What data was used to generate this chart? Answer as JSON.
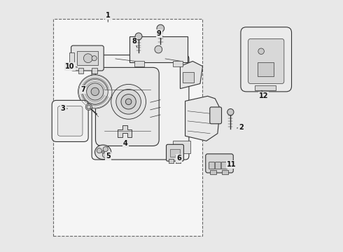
{
  "background_color": "#e8e8e8",
  "line_color": "#333333",
  "fig_width": 4.9,
  "fig_height": 3.6,
  "dpi": 100,
  "box_color": "#ffffff",
  "label_positions": {
    "1": [
      0.245,
      0.945,
      0.245,
      0.91
    ],
    "2": [
      0.78,
      0.495,
      0.755,
      0.49
    ],
    "3": [
      0.065,
      0.57,
      0.09,
      0.57
    ],
    "4": [
      0.315,
      0.43,
      0.305,
      0.445
    ],
    "5": [
      0.245,
      0.38,
      0.23,
      0.4
    ],
    "6": [
      0.53,
      0.37,
      0.51,
      0.385
    ],
    "7": [
      0.145,
      0.645,
      0.165,
      0.64
    ],
    "8": [
      0.35,
      0.84,
      0.365,
      0.81
    ],
    "9": [
      0.45,
      0.87,
      0.46,
      0.84
    ],
    "10": [
      0.092,
      0.74,
      0.13,
      0.735
    ],
    "11": [
      0.74,
      0.345,
      0.715,
      0.348
    ],
    "12": [
      0.87,
      0.62,
      0.86,
      0.65
    ]
  }
}
